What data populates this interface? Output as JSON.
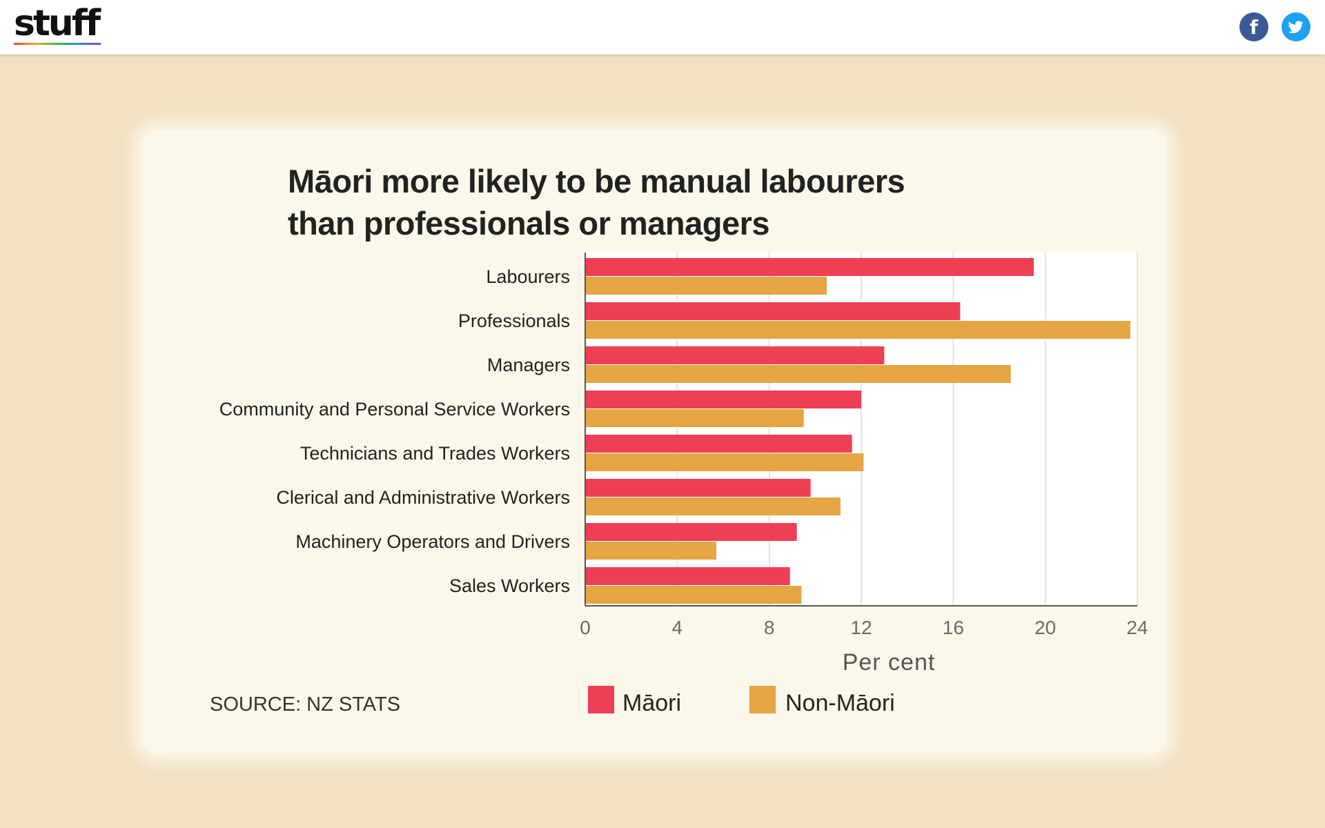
{
  "header": {
    "logo_text": "stuff",
    "facebook_icon": "facebook-icon",
    "twitter_icon": "twitter-icon",
    "facebook_glyph": "f",
    "twitter_glyph": "🐦"
  },
  "chart_data": {
    "type": "bar",
    "orientation": "horizontal",
    "title": "Māori more likely to be manual labourers than professionals or managers",
    "title_lines": [
      "Māori more likely to be manual labourers",
      "than professionals or managers"
    ],
    "categories": [
      "Labourers",
      "Professionals",
      "Managers",
      "Community and Personal Service Workers",
      "Technicians and Trades Workers",
      "Clerical and Administrative Workers",
      "Machinery Operators and Drivers",
      "Sales Workers"
    ],
    "series": [
      {
        "name": "Māori",
        "color": "#ee3f55",
        "values": [
          19.5,
          16.3,
          13.0,
          12.0,
          11.6,
          9.8,
          9.2,
          8.9
        ]
      },
      {
        "name": "Non-Māori",
        "color": "#e5a542",
        "values": [
          10.5,
          23.7,
          18.5,
          9.5,
          12.1,
          11.1,
          5.7,
          9.4
        ]
      }
    ],
    "xlabel": "Per cent",
    "xlim": [
      0,
      24
    ],
    "xticks": [
      0,
      4,
      8,
      12,
      16,
      20,
      24
    ],
    "grid": true,
    "legend_position": "bottom",
    "source": "SOURCE: NZ STATS"
  }
}
